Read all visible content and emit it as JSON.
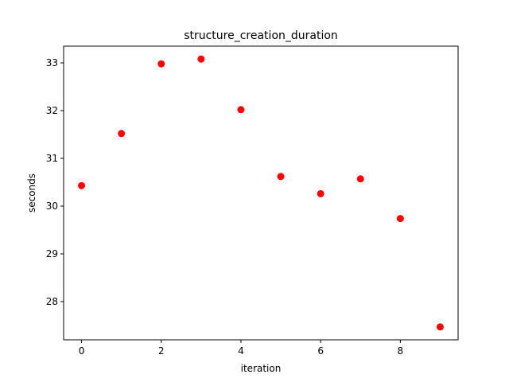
{
  "chart_data": {
    "type": "scatter",
    "title": "structure_creation_duration",
    "xlabel": "iteration",
    "ylabel": "seconds",
    "x": [
      0,
      1,
      2,
      3,
      4,
      5,
      6,
      7,
      8,
      9
    ],
    "y": [
      30.43,
      31.52,
      32.98,
      33.08,
      32.02,
      30.62,
      30.26,
      30.57,
      29.74,
      27.47
    ],
    "xlim": [
      -0.45,
      9.45
    ],
    "ylim": [
      27.2,
      33.35
    ],
    "xticks": [
      0,
      2,
      4,
      6,
      8
    ],
    "yticks": [
      28,
      29,
      30,
      31,
      32,
      33
    ],
    "marker_color": "#ff0000",
    "grid": false,
    "legend": false
  }
}
